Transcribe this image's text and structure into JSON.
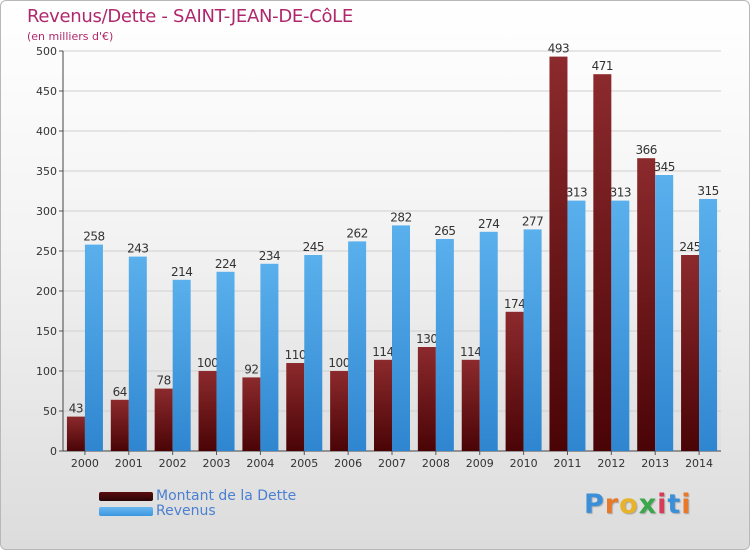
{
  "title": "Revenus/Dette - SAINT-JEAN-DE-CôLE",
  "subtitle": "(en milliers d'€)",
  "chart_data": {
    "type": "bar",
    "categories": [
      "2000",
      "2001",
      "2002",
      "2003",
      "2004",
      "2005",
      "2006",
      "2007",
      "2008",
      "2009",
      "2010",
      "2011",
      "2012",
      "2013",
      "2014"
    ],
    "series": [
      {
        "name": "Montant de la Dette",
        "color": "#7a1b1e",
        "values": [
          43,
          64,
          78,
          100,
          92,
          110,
          100,
          114,
          130,
          114,
          174,
          493,
          471,
          366,
          245
        ]
      },
      {
        "name": "Revenus",
        "color": "#4fa3e3",
        "values": [
          258,
          243,
          214,
          224,
          234,
          245,
          262,
          282,
          265,
          274,
          277,
          313,
          313,
          345,
          315
        ]
      }
    ],
    "ylim": [
      0,
      500
    ],
    "yticks": [
      0,
      50,
      100,
      150,
      200,
      250,
      300,
      350,
      400,
      450,
      500
    ],
    "grid": true,
    "legend_position": "bottom-left"
  },
  "legend": {
    "items": [
      {
        "label": "Montant de la Dette",
        "color": "#5a0c0e"
      },
      {
        "label": "Revenus",
        "color": "#3c96df"
      }
    ]
  },
  "logo": {
    "text": "Proxiti",
    "letter_colors": [
      "#3a8fd8",
      "#e8782a",
      "#e8b22a",
      "#3aa84a",
      "#d83a5a",
      "#3a8fd8",
      "#e8782a"
    ]
  }
}
